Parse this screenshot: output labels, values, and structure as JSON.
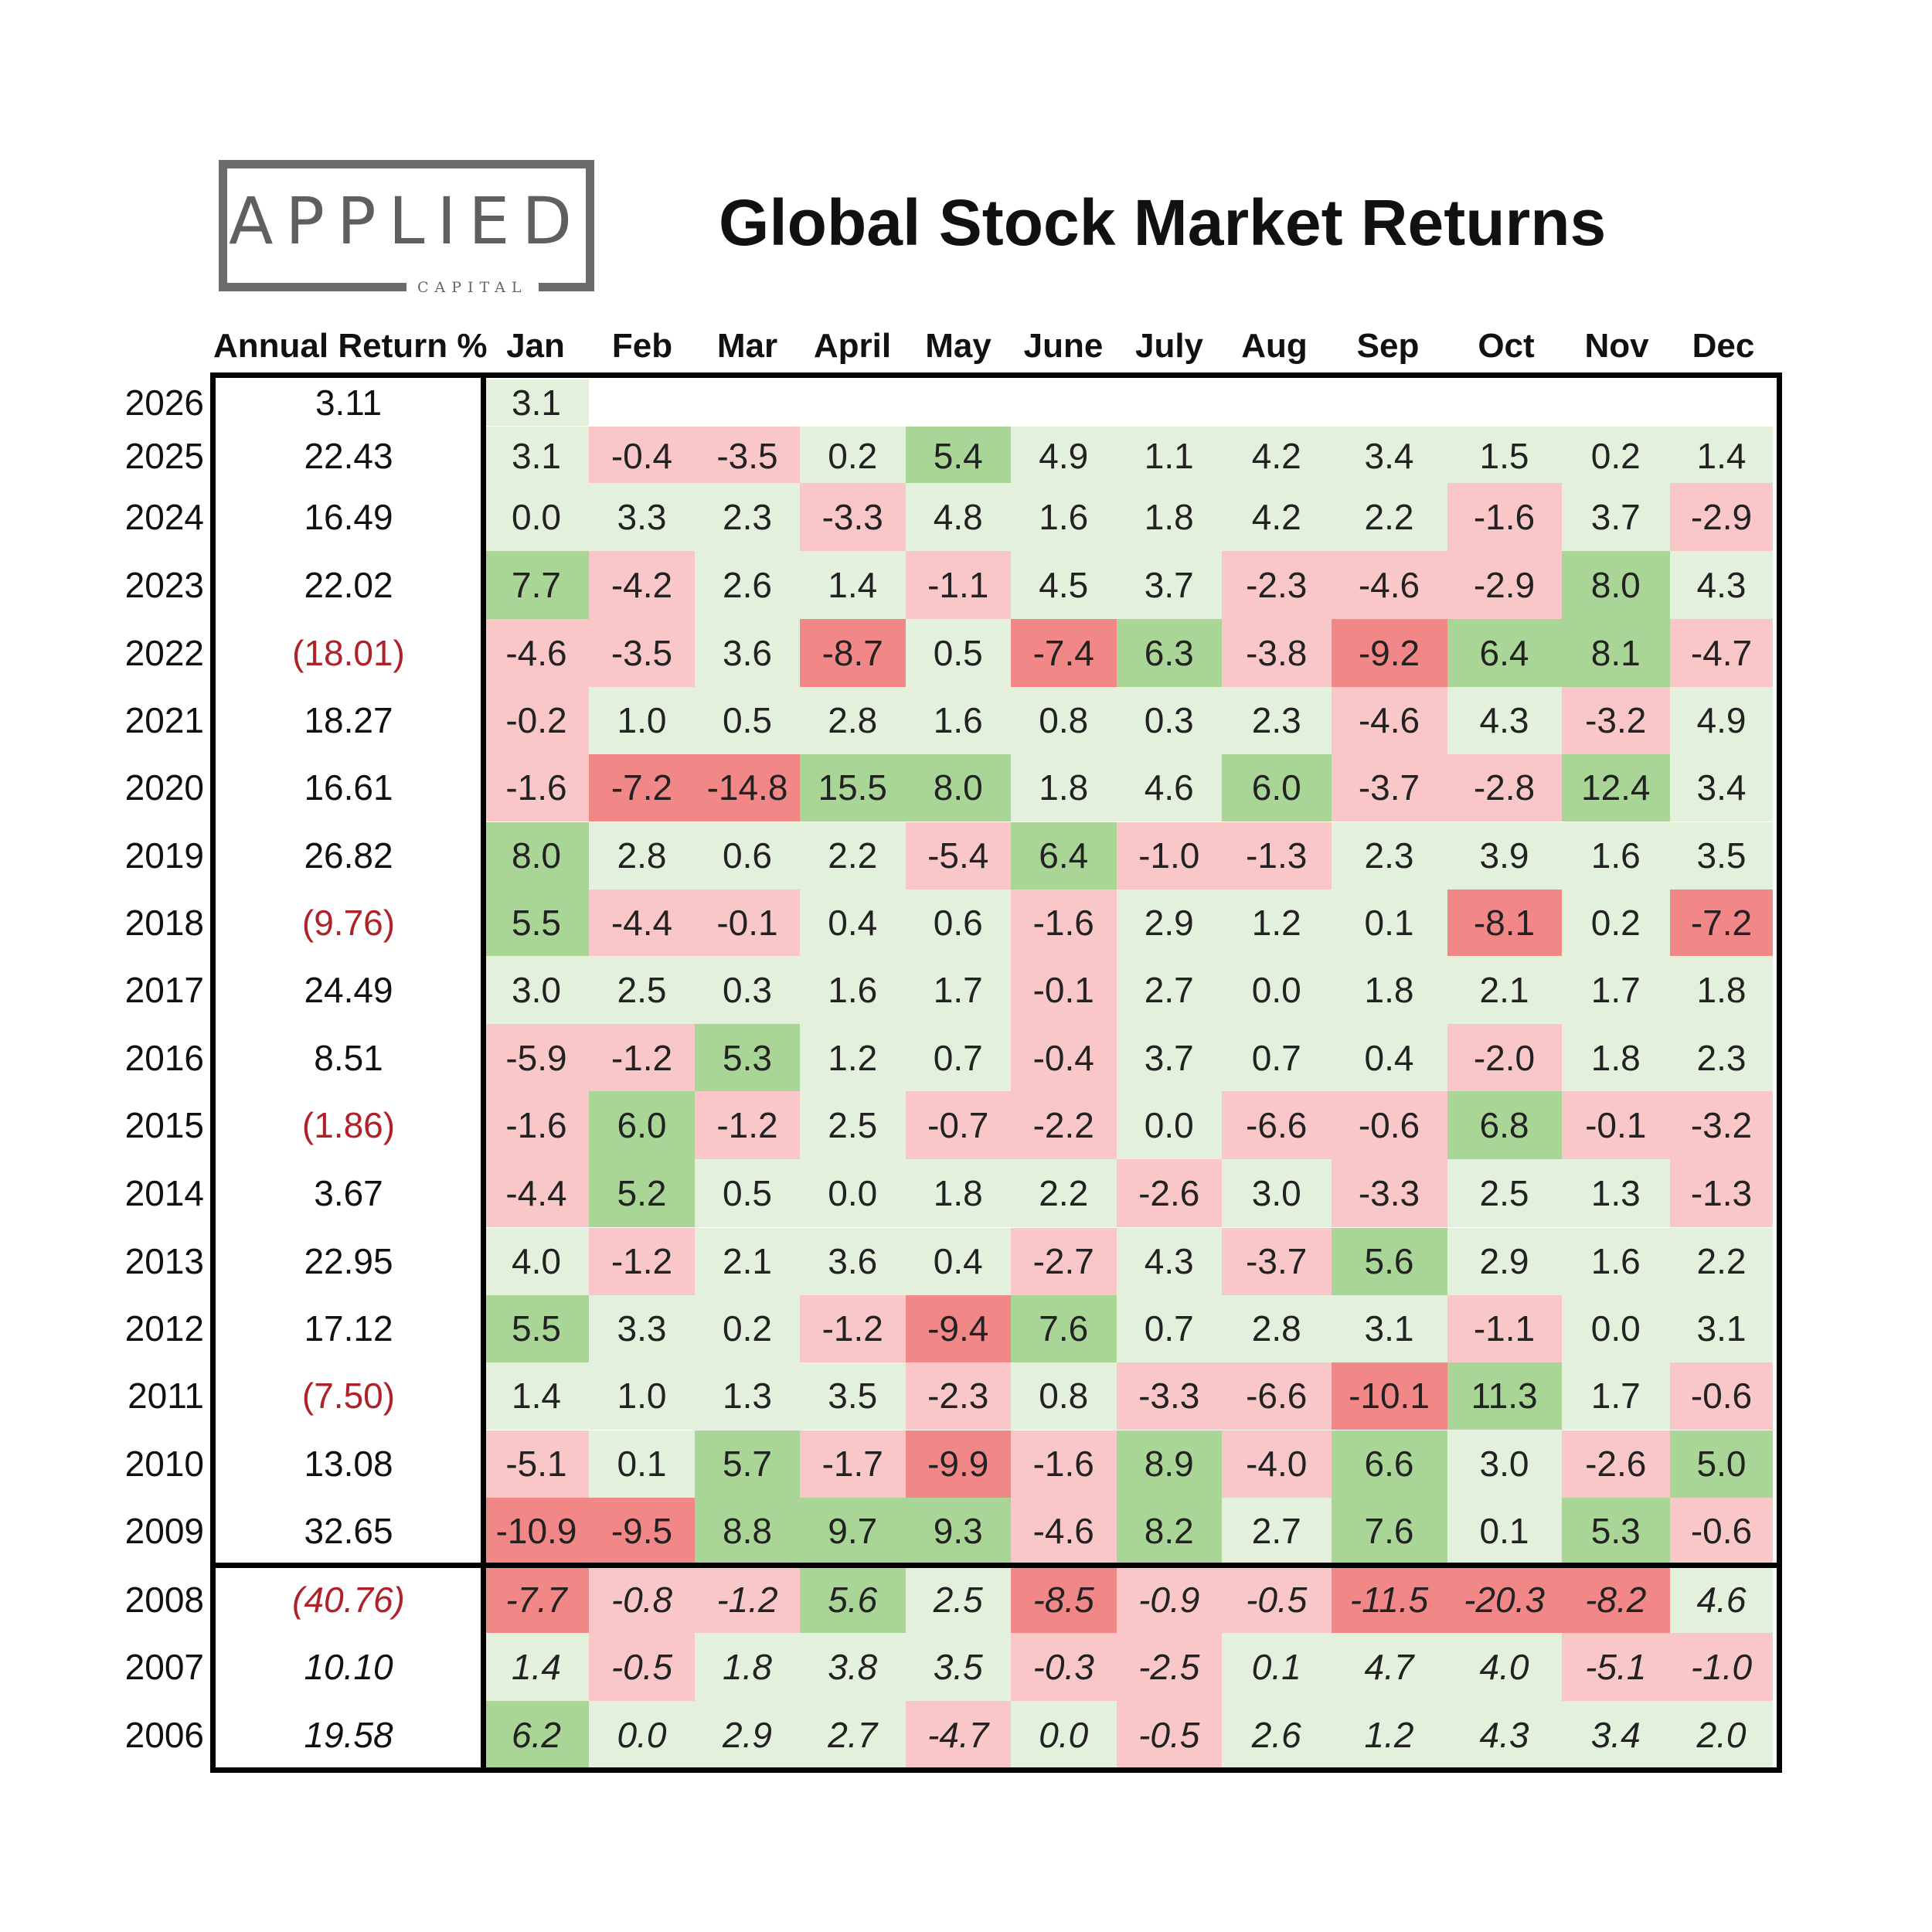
{
  "logo": {
    "word": "APPLIED",
    "sub": "CAPITAL"
  },
  "chart_data": {
    "type": "table",
    "title": "Global Stock Market Returns",
    "annual_header": "Annual Return %",
    "months": [
      "Jan",
      "Feb",
      "Mar",
      "April",
      "May",
      "June",
      "July",
      "Aug",
      "Sep",
      "Oct",
      "Nov",
      "Dec"
    ],
    "colors": {
      "light_green": "#e3f1dc",
      "mid_green": "#a9d596",
      "light_red": "#f9c7c7",
      "mid_red": "#f28787",
      "negative_text": "#b0222a"
    },
    "rows": [
      {
        "year": "2026",
        "annual": "3.11",
        "months": [
          "3.1"
        ]
      },
      {
        "year": "2025",
        "annual": "22.43",
        "months": [
          "3.1",
          "-0.4",
          "-3.5",
          "0.2",
          "5.4",
          "4.9",
          "1.1",
          "4.2",
          "3.4",
          "1.5",
          "0.2",
          "1.4"
        ]
      },
      {
        "year": "2024",
        "annual": "16.49",
        "months": [
          "0.0",
          "3.3",
          "2.3",
          "-3.3",
          "4.8",
          "1.6",
          "1.8",
          "4.2",
          "2.2",
          "-1.6",
          "3.7",
          "-2.9"
        ]
      },
      {
        "year": "2023",
        "annual": "22.02",
        "months": [
          "7.7",
          "-4.2",
          "2.6",
          "1.4",
          "-1.1",
          "4.5",
          "3.7",
          "-2.3",
          "-4.6",
          "-2.9",
          "8.0",
          "4.3"
        ]
      },
      {
        "year": "2022",
        "annual": "(18.01)",
        "months": [
          "-4.6",
          "-3.5",
          "3.6",
          "-8.7",
          "0.5",
          "-7.4",
          "6.3",
          "-3.8",
          "-9.2",
          "6.4",
          "8.1",
          "-4.7"
        ]
      },
      {
        "year": "2021",
        "annual": "18.27",
        "months": [
          "-0.2",
          "1.0",
          "0.5",
          "2.8",
          "1.6",
          "0.8",
          "0.3",
          "2.3",
          "-4.6",
          "4.3",
          "-3.2",
          "4.9"
        ]
      },
      {
        "year": "2020",
        "annual": "16.61",
        "months": [
          "-1.6",
          "-7.2",
          "-14.8",
          "15.5",
          "8.0",
          "1.8",
          "4.6",
          "6.0",
          "-3.7",
          "-2.8",
          "12.4",
          "3.4"
        ]
      },
      {
        "year": "2019",
        "annual": "26.82",
        "months": [
          "8.0",
          "2.8",
          "0.6",
          "2.2",
          "-5.4",
          "6.4",
          "-1.0",
          "-1.3",
          "2.3",
          "3.9",
          "1.6",
          "3.5"
        ]
      },
      {
        "year": "2018",
        "annual": "(9.76)",
        "months": [
          "5.5",
          "-4.4",
          "-0.1",
          "0.4",
          "0.6",
          "-1.6",
          "2.9",
          "1.2",
          "0.1",
          "-8.1",
          "0.2",
          "-7.2"
        ]
      },
      {
        "year": "2017",
        "annual": "24.49",
        "months": [
          "3.0",
          "2.5",
          "0.3",
          "1.6",
          "1.7",
          "-0.1",
          "2.7",
          "0.0",
          "1.8",
          "2.1",
          "1.7",
          "1.8"
        ]
      },
      {
        "year": "2016",
        "annual": "8.51",
        "months": [
          "-5.9",
          "-1.2",
          "5.3",
          "1.2",
          "0.7",
          "-0.4",
          "3.7",
          "0.7",
          "0.4",
          "-2.0",
          "1.8",
          "2.3"
        ]
      },
      {
        "year": "2015",
        "annual": "(1.86)",
        "months": [
          "-1.6",
          "6.0",
          "-1.2",
          "2.5",
          "-0.7",
          "-2.2",
          "0.0",
          "-6.6",
          "-0.6",
          "6.8",
          "-0.1",
          "-3.2"
        ]
      },
      {
        "year": "2014",
        "annual": "3.67",
        "months": [
          "-4.4",
          "5.2",
          "0.5",
          "0.0",
          "1.8",
          "2.2",
          "-2.6",
          "3.0",
          "-3.3",
          "2.5",
          "1.3",
          "-1.3"
        ]
      },
      {
        "year": "2013",
        "annual": "22.95",
        "months": [
          "4.0",
          "-1.2",
          "2.1",
          "3.6",
          "0.4",
          "-2.7",
          "4.3",
          "-3.7",
          "5.6",
          "2.9",
          "1.6",
          "2.2"
        ]
      },
      {
        "year": "2012",
        "annual": "17.12",
        "months": [
          "5.5",
          "3.3",
          "0.2",
          "-1.2",
          "-9.4",
          "7.6",
          "0.7",
          "2.8",
          "3.1",
          "-1.1",
          "0.0",
          "3.1"
        ]
      },
      {
        "year": "2011",
        "annual": "(7.50)",
        "months": [
          "1.4",
          "1.0",
          "1.3",
          "3.5",
          "-2.3",
          "0.8",
          "-3.3",
          "-6.6",
          "-10.1",
          "11.3",
          "1.7",
          "-0.6"
        ]
      },
      {
        "year": "2010",
        "annual": "13.08",
        "months": [
          "-5.1",
          "0.1",
          "5.7",
          "-1.7",
          "-9.9",
          "-1.6",
          "8.9",
          "-4.0",
          "6.6",
          "3.0",
          "-2.6",
          "5.0"
        ]
      },
      {
        "year": "2009",
        "annual": "32.65",
        "months": [
          "-10.9",
          "-9.5",
          "8.8",
          "9.7",
          "9.3",
          "-4.6",
          "8.2",
          "2.7",
          "7.6",
          "0.1",
          "5.3",
          "-0.6"
        ]
      },
      {
        "year": "2008",
        "annual": "(40.76)",
        "italic": true,
        "months": [
          "-7.7",
          "-0.8",
          "-1.2",
          "5.6",
          "2.5",
          "-8.5",
          "-0.9",
          "-0.5",
          "-11.5",
          "-20.3",
          "-8.2",
          "4.6"
        ]
      },
      {
        "year": "2007",
        "annual": "10.10",
        "italic": true,
        "months": [
          "1.4",
          "-0.5",
          "1.8",
          "3.8",
          "3.5",
          "-0.3",
          "-2.5",
          "0.1",
          "4.7",
          "4.0",
          "-5.1",
          "-1.0"
        ]
      },
      {
        "year": "2006",
        "annual": "19.58",
        "italic": true,
        "months": [
          "6.2",
          "0.0",
          "2.9",
          "2.7",
          "-4.7",
          "0.0",
          "-0.5",
          "2.6",
          "1.2",
          "4.3",
          "3.4",
          "2.0"
        ]
      }
    ]
  }
}
